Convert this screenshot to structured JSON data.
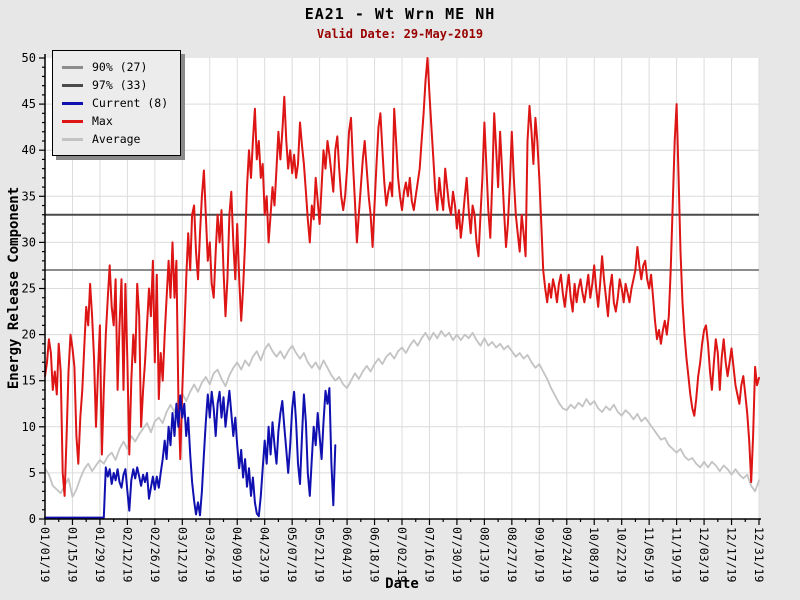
{
  "header": {
    "title": "EA21 - Wt Wrn ME NH",
    "subtitle": "Valid Date: 29-May-2019"
  },
  "colors": {
    "background": "#e7e7e7",
    "plot_background": "#ffffff",
    "grid": "#dcdcdc",
    "axis": "#000000",
    "subtitle": "#990000"
  },
  "legend": {
    "items": [
      {
        "label": "90% (27)",
        "color": "#8c8c8c"
      },
      {
        "label": "97% (33)",
        "color": "#4a4a4a"
      },
      {
        "label": "Current (8)",
        "color": "#1010b0"
      },
      {
        "label": "Max",
        "color": "#dd1515"
      },
      {
        "label": "Average",
        "color": "#c3c3c3"
      }
    ]
  },
  "chart_data": {
    "type": "line",
    "title": "EA21 - Wt Wrn ME NH",
    "subtitle": "Valid Date: 29-May-2019",
    "xlabel": "Date",
    "ylabel": "Energy Release Component",
    "ylim": [
      0,
      50
    ],
    "grid": true,
    "legend_position": "top-left",
    "y_major_tick_step": 5,
    "y_minor_tick_step": 1,
    "x_tick_interval_days": 14,
    "x_minor_tick_interval_days": 7,
    "x_tick_labels": [
      "01/01/19",
      "01/15/19",
      "01/29/19",
      "02/12/19",
      "02/26/19",
      "03/12/19",
      "03/26/19",
      "04/09/19",
      "04/23/19",
      "05/07/19",
      "05/21/19",
      "06/04/19",
      "06/18/19",
      "07/02/19",
      "07/16/19",
      "07/30/19",
      "08/13/19",
      "08/27/19",
      "09/10/19",
      "09/24/19",
      "10/08/19",
      "10/22/19",
      "11/05/19",
      "11/19/19",
      "12/03/19",
      "12/17/19",
      "12/31/19"
    ],
    "thresholds": [
      {
        "label": "90% (27)",
        "value": 27,
        "color": "#8c8c8c"
      },
      {
        "label": "97% (33)",
        "value": 33,
        "color": "#4a4a4a"
      }
    ],
    "series": [
      {
        "name": "Average",
        "color": "#c3c3c3",
        "width": 1.8,
        "start_day": 0,
        "step_days": 2,
        "values": [
          5.5,
          4.8,
          3.6,
          3.2,
          2.8,
          3.6,
          4.4,
          2.4,
          3.2,
          4.4,
          5.4,
          6,
          5.2,
          5.8,
          6.4,
          6,
          6.8,
          7.2,
          6.4,
          7.6,
          8.4,
          7.6,
          9,
          8.4,
          9.2,
          9.8,
          10.4,
          9.4,
          10.6,
          11,
          10.4,
          11.6,
          12.4,
          11.6,
          13,
          13.6,
          12.8,
          13.8,
          14.6,
          13.8,
          14.8,
          15.4,
          14.6,
          15.8,
          16.2,
          15.2,
          14.4,
          15.6,
          16.4,
          17,
          16.2,
          17.2,
          16.6,
          17.6,
          18.2,
          17.2,
          18.4,
          19,
          18.2,
          17.6,
          18.2,
          17.4,
          18.2,
          18.8,
          18,
          17.4,
          18,
          17,
          16.4,
          17,
          16.2,
          17.2,
          16.4,
          15.6,
          15,
          15.4,
          14.6,
          14.2,
          15,
          15.8,
          15.2,
          16,
          16.6,
          16,
          16.8,
          17.4,
          16.8,
          17.6,
          18,
          17.4,
          18.2,
          18.6,
          18,
          18.8,
          19.4,
          18.8,
          19.6,
          20.2,
          19.4,
          20.2,
          19.6,
          20.4,
          19.8,
          20.2,
          19.4,
          20,
          19.4,
          20,
          19.6,
          20.2,
          19.4,
          18.8,
          19.6,
          18.8,
          19.2,
          18.6,
          19,
          18.4,
          18.8,
          18.2,
          17.6,
          18,
          17.4,
          17.8,
          17,
          16.4,
          16.8,
          16,
          15.2,
          14.2,
          13.4,
          12.6,
          12,
          11.8,
          12.4,
          12,
          12.6,
          12.2,
          13,
          12.4,
          12.8,
          12,
          11.6,
          12.2,
          11.8,
          12.4,
          11.6,
          11.2,
          11.8,
          11.4,
          10.8,
          11.4,
          10.6,
          11,
          10.4,
          9.8,
          9.2,
          8.6,
          8.8,
          8,
          7.6,
          7.2,
          7.6,
          6.8,
          6.4,
          6.6,
          6,
          5.6,
          6.2,
          5.6,
          6.2,
          5.8,
          5.2,
          5.8,
          5.4,
          4.8,
          5.4,
          4.8,
          4.4,
          4.8,
          3.6,
          3,
          4.2
        ]
      },
      {
        "name": "Max",
        "color": "#dd1515",
        "width": 2,
        "start_day": 0,
        "step_days": 1,
        "values": [
          15.5,
          17,
          19.5,
          18,
          14,
          16,
          13.5,
          19,
          16,
          5,
          2.5,
          9,
          16,
          20,
          18.5,
          16.5,
          9,
          6,
          11,
          14,
          18.5,
          23,
          21,
          25.5,
          22,
          17.5,
          10,
          16,
          21,
          7,
          14,
          20,
          24,
          27.5,
          23,
          21,
          26,
          14,
          21,
          26,
          14,
          25.5,
          17,
          7,
          15,
          20,
          17,
          25.5,
          22,
          10,
          14,
          17,
          21,
          25,
          22,
          28,
          17,
          26.5,
          13,
          18,
          15,
          20,
          24,
          28,
          24,
          30,
          24,
          28,
          13,
          6.5,
          14,
          20,
          26,
          31,
          27,
          33,
          34,
          29,
          26,
          31,
          35,
          37.8,
          33,
          28,
          30,
          25.5,
          24,
          29,
          33,
          30,
          33.5,
          27,
          22,
          26,
          33,
          35.5,
          30,
          26,
          32,
          26,
          21.5,
          25,
          30,
          36,
          40,
          37,
          41,
          44.5,
          39,
          41,
          37,
          38.5,
          33,
          35,
          30,
          33,
          36,
          34,
          38,
          42,
          39,
          42,
          45.8,
          41,
          38,
          40,
          37.5,
          39.5,
          37,
          38.5,
          43,
          40.5,
          38.5,
          35.5,
          32.5,
          30,
          34,
          32.5,
          37,
          34.5,
          32,
          36,
          40,
          38,
          41,
          39.5,
          37.5,
          35.5,
          40,
          41.5,
          38,
          35,
          33.5,
          35,
          38,
          42,
          43.5,
          38.5,
          34.5,
          30,
          33,
          36,
          39,
          41,
          38,
          35,
          33,
          29.5,
          34,
          38.5,
          42.5,
          44,
          40,
          36.5,
          34,
          35.5,
          36.5,
          35,
          44.5,
          41,
          37,
          35,
          33.5,
          35.5,
          36.5,
          35,
          37,
          34.5,
          33.5,
          35,
          36.5,
          38,
          41,
          44,
          47.5,
          50,
          46,
          42.5,
          39,
          35.5,
          33.5,
          37,
          35,
          33.5,
          38,
          36,
          34,
          33,
          35.5,
          34,
          31.5,
          33.5,
          30.5,
          32.5,
          35,
          37,
          33.5,
          31,
          34,
          33,
          30,
          28.5,
          33,
          37,
          43,
          38.5,
          33.5,
          30.5,
          36.5,
          44,
          40,
          36,
          42,
          38,
          33.5,
          29.5,
          32,
          36.5,
          42,
          37,
          33,
          31,
          29,
          33,
          31,
          28.5,
          41,
          44.8,
          42,
          38.5,
          43.5,
          41,
          37,
          32,
          27,
          25,
          23.5,
          25.5,
          24,
          26,
          25,
          23.5,
          25.5,
          26.5,
          24.5,
          23,
          25,
          26.5,
          24,
          22.5,
          25.5,
          23.5,
          25,
          26,
          24.5,
          23.5,
          25,
          26.5,
          24,
          25.5,
          27.5,
          25,
          23,
          25.5,
          28.5,
          26,
          24,
          22,
          25,
          26.5,
          23.5,
          22.5,
          24,
          26,
          25,
          23.5,
          25.5,
          24.5,
          23.5,
          25,
          26,
          27,
          29.5,
          27.5,
          26,
          27.5,
          28,
          26,
          25,
          26.5,
          24,
          21.5,
          19.5,
          20.5,
          19,
          20.5,
          21.5,
          20,
          22,
          27,
          34,
          41,
          45,
          37,
          29,
          23.5,
          20,
          17.5,
          15.5,
          13.5,
          12,
          11.2,
          13,
          15.5,
          17,
          19,
          20.5,
          21,
          19,
          16,
          14,
          17,
          19.5,
          18,
          14,
          17.5,
          19.5,
          17,
          15.5,
          17,
          18.5,
          16.5,
          14.5,
          13.5,
          12.5,
          14.5,
          15.5,
          13.5,
          11.5,
          8.5,
          4,
          9,
          16.5,
          14.5,
          15.3
        ]
      },
      {
        "name": "Current (8)",
        "color": "#1010b0",
        "width": 2,
        "start_day": 0,
        "step_days": 1,
        "values": [
          0.15,
          0.15,
          0.15,
          0.15,
          0.15,
          0.15,
          0.15,
          0.15,
          0.15,
          0.15,
          0.15,
          0.15,
          0.15,
          0.15,
          0.15,
          0.15,
          0.15,
          0.15,
          0.15,
          0.15,
          0.15,
          0.15,
          0.15,
          0.15,
          0.15,
          0.15,
          0.15,
          0.15,
          0.15,
          0.15,
          0.15,
          5.6,
          4.6,
          5.4,
          3.8,
          5,
          4.2,
          5.4,
          4,
          3.4,
          4.8,
          5.4,
          3,
          0.9,
          4.2,
          5.4,
          4.4,
          5.6,
          4.6,
          3.6,
          4.8,
          4,
          5,
          2.2,
          3.4,
          4.6,
          3.2,
          4.6,
          3.4,
          5,
          6.5,
          8.5,
          6.5,
          10,
          8,
          11.5,
          9,
          12.5,
          10,
          13.4,
          11,
          12.5,
          9,
          11,
          7,
          4,
          2,
          0.5,
          1.8,
          0.4,
          3,
          7,
          10.5,
          13.5,
          11,
          13.8,
          12,
          9,
          12.5,
          13.8,
          11,
          13.2,
          10,
          12,
          13.9,
          11.5,
          9,
          11,
          8,
          5.5,
          7.5,
          4.5,
          6.5,
          3.5,
          5.5,
          2.5,
          4.5,
          1.8,
          0.6,
          0.3,
          2.5,
          5.5,
          8.5,
          6,
          10,
          7,
          10.5,
          8,
          6,
          9.5,
          11.5,
          12.8,
          10,
          7.5,
          5,
          8,
          12,
          13.8,
          10.5,
          6,
          3.8,
          9,
          13.5,
          10.5,
          5,
          2.5,
          6.5,
          10,
          8,
          11.5,
          9,
          6.5,
          10.5,
          13.9,
          12.5,
          14.2,
          6,
          1.5,
          8
        ]
      }
    ]
  }
}
